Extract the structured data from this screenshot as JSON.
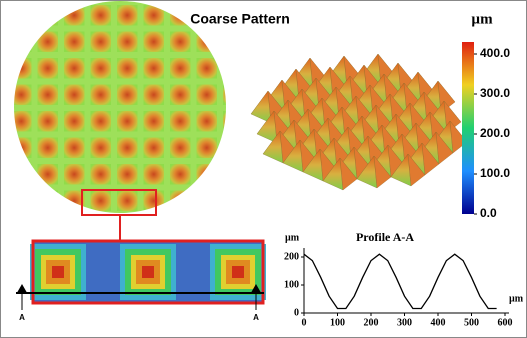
{
  "title": "Coarse Pattern",
  "colorbar": {
    "unit": "µm",
    "ticks": [
      {
        "value": 400,
        "label": "400.0"
      },
      {
        "value": 300,
        "label": "300.0"
      },
      {
        "value": 200,
        "label": "200.0"
      },
      {
        "value": 100,
        "label": "100.0"
      },
      {
        "value": 0,
        "label": "0.0"
      }
    ]
  },
  "section_labels": [
    "A",
    "A"
  ],
  "chart_data": {
    "type": "line",
    "title": "Profile A-A",
    "y_label": "µm",
    "x_label": "µm",
    "x": [
      0,
      25,
      50,
      75,
      100,
      125,
      150,
      175,
      200,
      225,
      250,
      275,
      300,
      325,
      350,
      375,
      400,
      425,
      450,
      475,
      500,
      525,
      550,
      575
    ],
    "series": [
      {
        "name": "Profile A-A",
        "color": "#000000",
        "values": [
          210,
          187,
          127,
          60,
          16,
          16,
          60,
          127,
          187,
          210,
          187,
          127,
          60,
          16,
          16,
          60,
          127,
          187,
          210,
          187,
          127,
          60,
          16,
          16
        ]
      }
    ],
    "xlim": [
      0,
      600
    ],
    "xticks": [
      0,
      100,
      200,
      300,
      400,
      500,
      600
    ],
    "ylim": [
      0,
      225
    ],
    "yticks": [
      0,
      100,
      200
    ]
  }
}
